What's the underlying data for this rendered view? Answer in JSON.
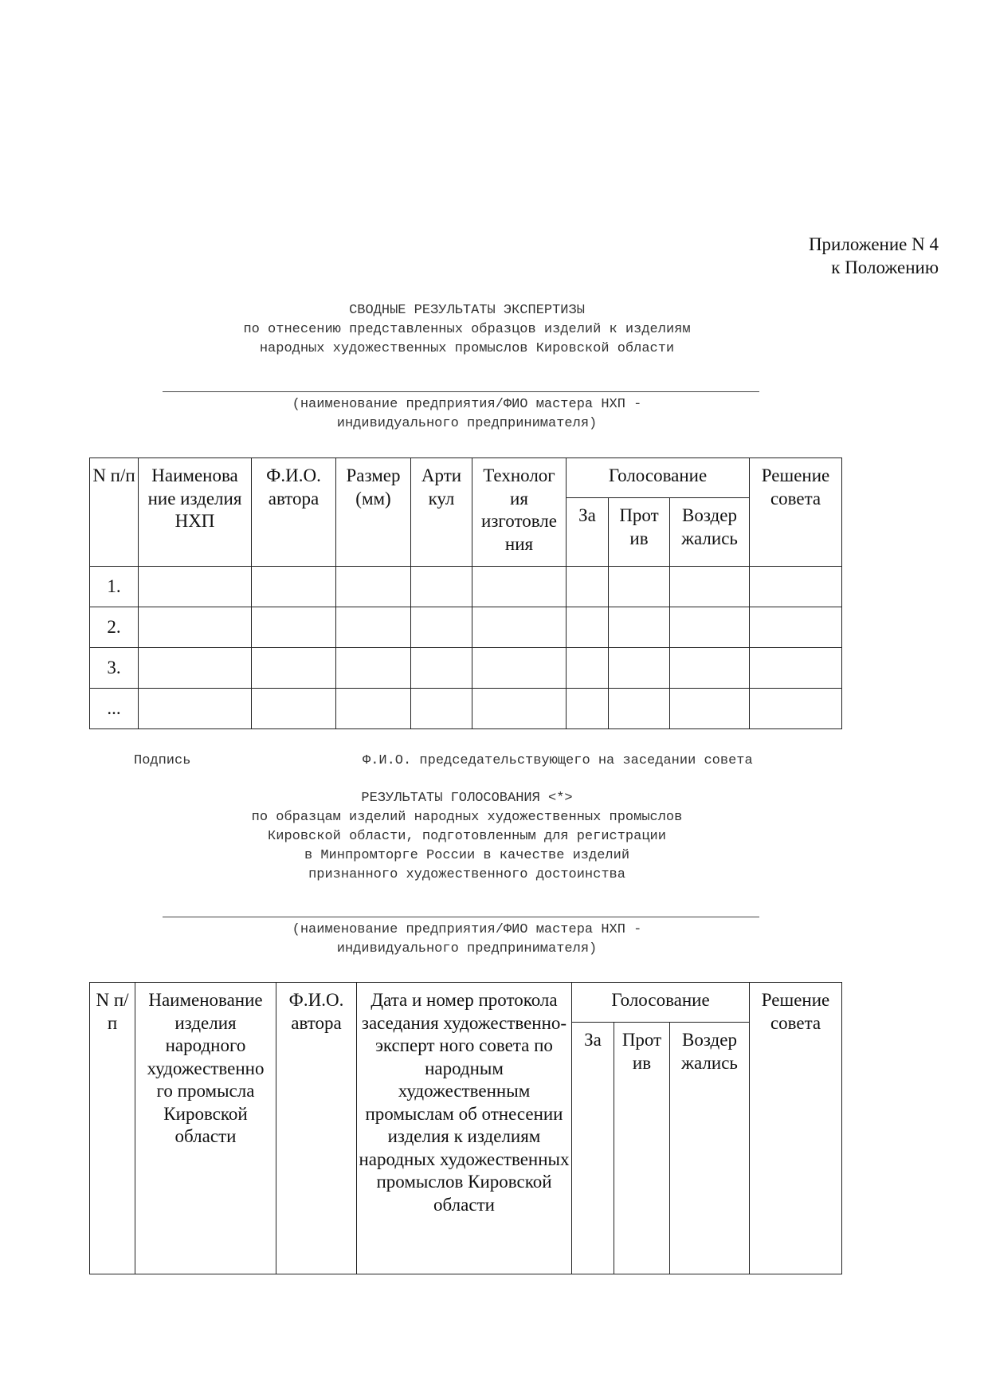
{
  "appendix": {
    "line1": "Приложение N 4",
    "line2": "к Положению"
  },
  "section1": {
    "title_lines": [
      "СВОДНЫЕ РЕЗУЛЬТАТЫ ЭКСПЕРТИЗЫ",
      "по отнесению представленных образцов изделий к изделиям",
      "народных художественных промыслов Кировской области"
    ],
    "caption_lines": [
      "(наименование предприятия/ФИО мастера НХП -",
      "индивидуального предпринимателя)"
    ],
    "table": {
      "headers": [
        "N п/п",
        "Наименова ние изделия НХП",
        "Ф.И.О. автора",
        "Размер (мм)",
        "Арти кул",
        "Технолог ия изготовле ния",
        "Голосование",
        "Решение совета"
      ],
      "vote_sub": [
        "За",
        "Прот ив",
        "Воздер жались"
      ],
      "rows": [
        "1.",
        "2.",
        "3.",
        "..."
      ]
    },
    "signature": "Подпись",
    "chair": "Ф.И.О. председательствующего на заседании совета"
  },
  "section2": {
    "title_lines": [
      "РЕЗУЛЬТАТЫ ГОЛОСОВАНИЯ <*>",
      "по образцам изделий народных художественных промыслов",
      "Кировской области, подготовленным для регистрации",
      "в Минпромторге России в качестве изделий",
      "признанного художественного достоинства"
    ],
    "caption_lines": [
      "(наименование предприятия/ФИО мастера НХП -",
      "индивидуального предпринимателя)"
    ],
    "table": {
      "headers": [
        "N п/п",
        "Наименование изделия народного художественно го промысла Кировской области",
        "Ф.И.О. автора",
        "Дата и номер протокола заседания художественно-эксперт ного совета по народным художественным промыслам об отнесении изделия к изделиям народных художественных промыслов Кировской области",
        "Голосование",
        "Решение совета"
      ],
      "vote_sub": [
        "За",
        "Прот ив",
        "Воздер жались"
      ]
    }
  }
}
